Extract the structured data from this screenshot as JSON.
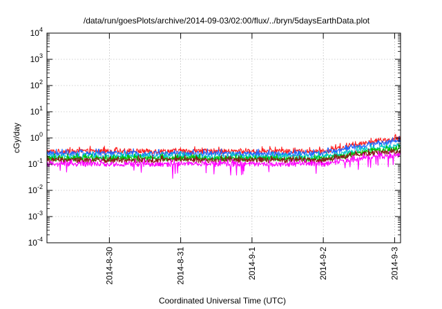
{
  "chart_data": {
    "type": "line",
    "title": "/data/run/goesPlots/archive/2014-09-03/02:00/flux/../bryn/5daysEarthData.plot",
    "xlabel": "Coordinated Universal Time (UTC)",
    "ylabel": "cGy/day",
    "y_scale": "log",
    "ylim": [
      0.0001,
      10000
    ],
    "y_ticks": [
      {
        "base": "10",
        "exp": "-4",
        "value": 0.0001
      },
      {
        "base": "10",
        "exp": "-3",
        "value": 0.001
      },
      {
        "base": "10",
        "exp": "-2",
        "value": 0.01
      },
      {
        "base": "10",
        "exp": "-1",
        "value": 0.1
      },
      {
        "base": "10",
        "exp": "0",
        "value": 1
      },
      {
        "base": "10",
        "exp": "1",
        "value": 10
      },
      {
        "base": "10",
        "exp": "2",
        "value": 100
      },
      {
        "base": "10",
        "exp": "3",
        "value": 1000
      },
      {
        "base": "10",
        "exp": "4",
        "value": 10000
      }
    ],
    "xlim": [
      "2014-08-29T03:00",
      "2014-09-03T02:00"
    ],
    "x_ticks": [
      "2014-8-30",
      "2014-8-31",
      "2014-9-1",
      "2014-9-2",
      "2014-9-3"
    ],
    "grid": true,
    "legend": "none",
    "series": [
      {
        "color": "#ff2020",
        "x": [
          "2014-08-29T03:00",
          "2014-08-30T00:00",
          "2014-08-31T00:00",
          "2014-09-01T00:00",
          "2014-09-02T00:00",
          "2014-09-02T06:00",
          "2014-09-02T18:00",
          "2014-09-03T02:00"
        ],
        "values": [
          0.3,
          0.31,
          0.31,
          0.3,
          0.3,
          0.4,
          0.75,
          0.9
        ]
      },
      {
        "color": "#1e64ff",
        "x": [
          "2014-08-29T03:00",
          "2014-08-30T00:00",
          "2014-08-31T00:00",
          "2014-09-01T00:00",
          "2014-09-02T00:00",
          "2014-09-02T06:00",
          "2014-09-02T18:00",
          "2014-09-03T02:00"
        ],
        "values": [
          0.24,
          0.25,
          0.25,
          0.24,
          0.25,
          0.33,
          0.6,
          0.75
        ]
      },
      {
        "color": "#00c8c8",
        "x": [
          "2014-08-29T03:00",
          "2014-08-30T00:00",
          "2014-08-31T00:00",
          "2014-09-01T00:00",
          "2014-09-02T00:00",
          "2014-09-02T06:00",
          "2014-09-02T18:00",
          "2014-09-03T02:00"
        ],
        "values": [
          0.19,
          0.19,
          0.19,
          0.19,
          0.19,
          0.25,
          0.42,
          0.5
        ]
      },
      {
        "color": "#00c000",
        "x": [
          "2014-08-29T03:00",
          "2014-08-30T00:00",
          "2014-08-31T00:00",
          "2014-09-01T00:00",
          "2014-09-02T00:00",
          "2014-09-02T06:00",
          "2014-09-02T18:00",
          "2014-09-03T02:00"
        ],
        "values": [
          0.16,
          0.16,
          0.16,
          0.16,
          0.16,
          0.2,
          0.33,
          0.38
        ]
      },
      {
        "color": "#8b1a1a",
        "x": [
          "2014-08-29T03:00",
          "2014-08-30T00:00",
          "2014-08-31T00:00",
          "2014-09-01T00:00",
          "2014-09-02T00:00",
          "2014-09-02T06:00",
          "2014-09-02T18:00",
          "2014-09-03T02:00"
        ],
        "values": [
          0.14,
          0.14,
          0.14,
          0.14,
          0.14,
          0.18,
          0.27,
          0.3
        ]
      },
      {
        "color": "#ff00ff",
        "x": [
          "2014-08-29T03:00",
          "2014-08-30T00:00",
          "2014-08-31T00:00",
          "2014-09-01T00:00",
          "2014-09-02T00:00",
          "2014-09-02T06:00",
          "2014-09-02T18:00",
          "2014-09-03T02:00"
        ],
        "values": [
          0.1,
          0.1,
          0.1,
          0.1,
          0.1,
          0.13,
          0.19,
          0.22
        ]
      }
    ]
  }
}
